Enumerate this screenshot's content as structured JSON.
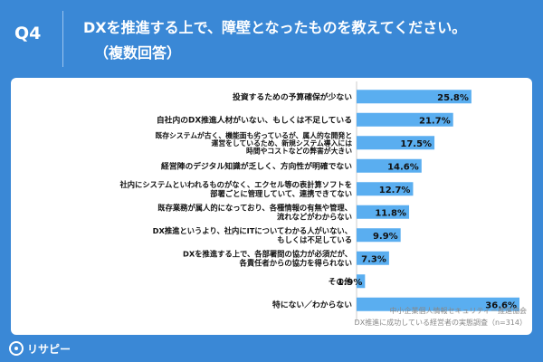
{
  "header": {
    "question_number": "Q4",
    "title_line1": "DXを推進する上で、障壁となったものを教えてください。",
    "title_line2": "（複数回答）"
  },
  "brand": {
    "name": "リサピー",
    "icon": "risapy-logo-icon"
  },
  "colors": {
    "background": "#3a88d6",
    "bar": "#5aaef0",
    "panel": "#ffffff",
    "text": "#111111"
  },
  "chart_data": {
    "type": "bar",
    "orientation": "horizontal",
    "unit": "%",
    "categories": [
      [
        "投資するための予算確保が少ない"
      ],
      [
        "自社内のDX推進人材がいない、もしくは不足している"
      ],
      [
        "既存システムが古く、機能面も劣っているが、属人的な開発と",
        "運営をしているため、新規システム導入には",
        "時間やコストなどの弊害が大きい"
      ],
      [
        "経営陣のデジタル知識が乏しく、方向性が明確でない"
      ],
      [
        "社内にシステムといわれるものがなく、エクセル等の表計算ソフトを",
        "部署ごとに管理していて、連携できてない"
      ],
      [
        "既存業務が属人的になっており、各種情報の有無や管理、",
        "流れなどがわからない"
      ],
      [
        "DX推進というより、社内にITについてわかる人がいない、",
        "もしくは不足している"
      ],
      [
        "DXを推進する上で、各部署間の協力が必須だが、",
        "各責任者からの協力を得られない"
      ],
      [
        "その他"
      ],
      [
        "特にない／わからない"
      ]
    ],
    "values": [
      25.8,
      21.7,
      17.5,
      14.6,
      12.7,
      11.8,
      9.9,
      7.3,
      1.9,
      36.6
    ],
    "value_labels": [
      "25.8%",
      "21.7%",
      "17.5%",
      "14.6%",
      "12.7%",
      "11.8%",
      "9.9%",
      "7.3%",
      "1.9%",
      "36.6%"
    ],
    "xlim": [
      0,
      36.6
    ],
    "source_line1": "中小企業個人情報セキュリティー推進協会",
    "source_line2": "DX推進に成功している経営者の実態調査（n=314）"
  }
}
